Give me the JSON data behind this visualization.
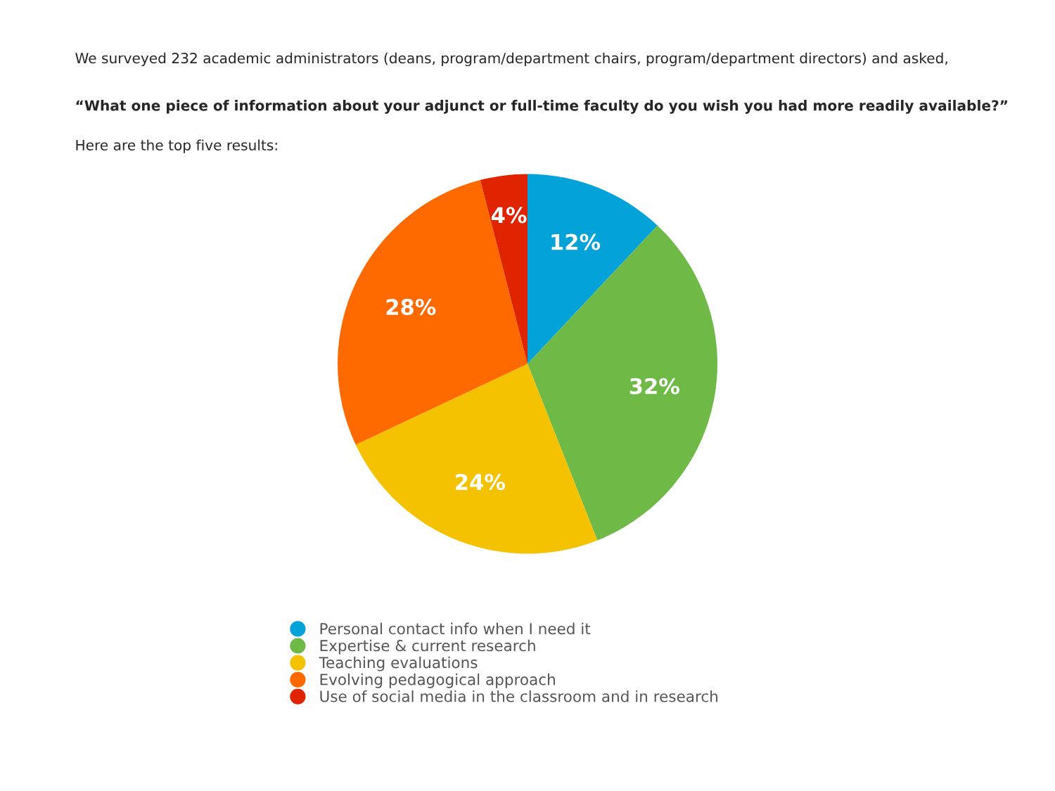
{
  "chart_data": {
    "type": "pie",
    "title": "We surveyed 232 academic administrators (deans, program/department chairs, program/department directors) and asked,",
    "subtitle": "“What one piece of information about your adjunct or full-time faculty do you wish you had more readily available?”",
    "annotations": [
      "Here are the top five results:"
    ],
    "categories": [
      "Personal contact info when I need it",
      "Expertise & current research",
      "Teaching evaluations",
      "Evolving pedagogical approach",
      "Use of social media in the classroom and in research"
    ],
    "values": [
      12,
      32,
      24,
      28,
      4
    ],
    "value_labels": [
      "12%",
      "32%",
      "24%",
      "28%",
      "4%"
    ],
    "colors": [
      "#03a2d9",
      "#6fba47",
      "#f4c200",
      "#ff6a00",
      "#e02400"
    ],
    "legend": "bottom"
  }
}
